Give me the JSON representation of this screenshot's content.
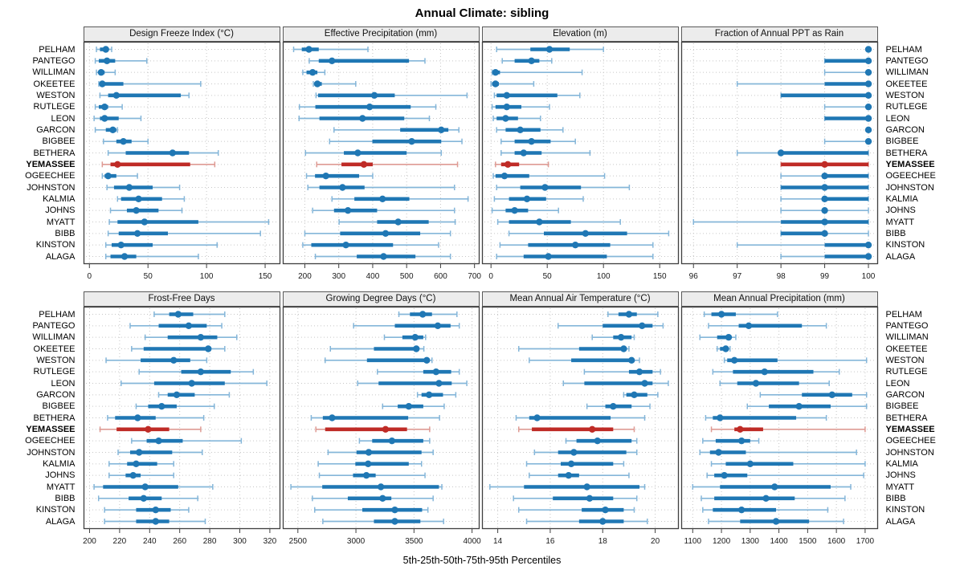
{
  "title": "Annual Climate: sibling",
  "caption": "5th-25th-50th-75th-95th Percentiles",
  "percentile_labels": [
    "5th",
    "25th",
    "50th",
    "75th",
    "95th"
  ],
  "highlight_station": "YEMASSEE",
  "stations": [
    "PELHAM",
    "PANTEGO",
    "WILLIMAN",
    "OKEETEE",
    "WESTON",
    "RUTLEGE",
    "LEON",
    "GARCON",
    "BIGBEE",
    "BETHERA",
    "YEMASSEE",
    "OGEECHEE",
    "JOHNSTON",
    "KALMIA",
    "JOHNS",
    "MYATT",
    "BIBB",
    "KINSTON",
    "ALAGA"
  ],
  "colors": {
    "series": "#1f77b4",
    "series_light": "#85b6d9",
    "highlight": "#bf2b26",
    "highlight_light": "#de9a93",
    "grid": "#c6c6c6",
    "strip_bg": "#ececec",
    "border": "#3f3f3f"
  },
  "chart_data": [
    {
      "type": "percentile-range",
      "row": 0,
      "col": 0,
      "title": "Design Freeze Index (°C)",
      "xlim": [
        -5,
        163
      ],
      "xticks": [
        0,
        50,
        100,
        150
      ],
      "values": [
        [
          6,
          9,
          14,
          16,
          19
        ],
        [
          5,
          8,
          15,
          22,
          49
        ],
        [
          6,
          8,
          10,
          13,
          22
        ],
        [
          8,
          9,
          11,
          29,
          95
        ],
        [
          9,
          16,
          23,
          78,
          85
        ],
        [
          5,
          8,
          13,
          16,
          28
        ],
        [
          4,
          9,
          13,
          25,
          44
        ],
        [
          5,
          14,
          20,
          23,
          24
        ],
        [
          12,
          23,
          29,
          36,
          50
        ],
        [
          16,
          31,
          71,
          85,
          110
        ],
        [
          11,
          18,
          24,
          86,
          107
        ],
        [
          11,
          13,
          16,
          23,
          41
        ],
        [
          15,
          21,
          34,
          54,
          77
        ],
        [
          24,
          27,
          42,
          62,
          81
        ],
        [
          18,
          32,
          40,
          59,
          79
        ],
        [
          17,
          24,
          47,
          93,
          153
        ],
        [
          16,
          25,
          41,
          67,
          146
        ],
        [
          14,
          19,
          27,
          54,
          109
        ],
        [
          14,
          18,
          30,
          40,
          93
        ]
      ]
    },
    {
      "type": "percentile-range",
      "row": 0,
      "col": 1,
      "title": "Effective Precipitation (mm)",
      "xlim": [
        135,
        715
      ],
      "xticks": [
        200,
        300,
        400,
        500,
        600,
        700
      ],
      "values": [
        [
          167,
          191,
          212,
          241,
          386
        ],
        [
          213,
          241,
          280,
          507,
          554
        ],
        [
          194,
          205,
          223,
          237,
          259
        ],
        [
          225,
          228,
          237,
          250,
          350
        ],
        [
          233,
          239,
          405,
          465,
          678
        ],
        [
          184,
          231,
          391,
          512,
          586
        ],
        [
          183,
          243,
          370,
          493,
          567
        ],
        [
          286,
          481,
          602,
          623,
          654
        ],
        [
          273,
          399,
          515,
          602,
          663
        ],
        [
          202,
          315,
          356,
          500,
          602
        ],
        [
          235,
          308,
          374,
          400,
          650
        ],
        [
          205,
          230,
          262,
          360,
          400
        ],
        [
          209,
          243,
          311,
          376,
          641
        ],
        [
          280,
          346,
          429,
          508,
          681
        ],
        [
          223,
          286,
          327,
          413,
          641
        ],
        [
          301,
          413,
          475,
          565,
          643
        ],
        [
          200,
          304,
          438,
          540,
          629
        ],
        [
          194,
          219,
          321,
          460,
          594
        ],
        [
          231,
          353,
          432,
          526,
          629
        ]
      ]
    },
    {
      "type": "percentile-range",
      "row": 0,
      "col": 2,
      "title": "Elevation (m)",
      "xlim": [
        -8,
        167
      ],
      "xticks": [
        0,
        50,
        100,
        150
      ],
      "values": [
        [
          5,
          35,
          52,
          70,
          100
        ],
        [
          10,
          21,
          36,
          43,
          54
        ],
        [
          1,
          2,
          4,
          8,
          81
        ],
        [
          0,
          1,
          4,
          7,
          38
        ],
        [
          3,
          5,
          14,
          59,
          79
        ],
        [
          1,
          4,
          14,
          27,
          52
        ],
        [
          2,
          5,
          13,
          24,
          44
        ],
        [
          5,
          13,
          26,
          44,
          64
        ],
        [
          9,
          21,
          36,
          53,
          75
        ],
        [
          9,
          21,
          29,
          45,
          88
        ],
        [
          4,
          9,
          15,
          25,
          51
        ],
        [
          2,
          4,
          12,
          34,
          101
        ],
        [
          5,
          26,
          48,
          80,
          123
        ],
        [
          3,
          16,
          32,
          49,
          82
        ],
        [
          1,
          13,
          21,
          33,
          60
        ],
        [
          6,
          16,
          43,
          71,
          115
        ],
        [
          16,
          47,
          84,
          121,
          158
        ],
        [
          8,
          33,
          75,
          106,
          144
        ],
        [
          5,
          29,
          51,
          103,
          144
        ]
      ]
    },
    {
      "type": "percentile-range",
      "row": 0,
      "col": 3,
      "title": "Fraction of Annual PPT as Rain",
      "xlim": [
        95.72,
        100.22
      ],
      "xticks": [
        96,
        97,
        98,
        99,
        100
      ],
      "values": [
        [
          100,
          100,
          100,
          100,
          100
        ],
        [
          99,
          99,
          100,
          100,
          100
        ],
        [
          99,
          100,
          100,
          100,
          100
        ],
        [
          97,
          99,
          100,
          100,
          100
        ],
        [
          98,
          98,
          100,
          100,
          100
        ],
        [
          99,
          100,
          100,
          100,
          100
        ],
        [
          99,
          99,
          100,
          100,
          100
        ],
        [
          100,
          100,
          100,
          100,
          100
        ],
        [
          99,
          100,
          100,
          100,
          100
        ],
        [
          97,
          98,
          98,
          100,
          100
        ],
        [
          98,
          98,
          99,
          100,
          100
        ],
        [
          98,
          99,
          99,
          100,
          100
        ],
        [
          98,
          98,
          99,
          100,
          100
        ],
        [
          98,
          99,
          99,
          100,
          100
        ],
        [
          98,
          99,
          99,
          99,
          100
        ],
        [
          96,
          98,
          99,
          100,
          100
        ],
        [
          98,
          98,
          99,
          99,
          100
        ],
        [
          97,
          99,
          100,
          100,
          100
        ],
        [
          98,
          99,
          100,
          100,
          100
        ]
      ]
    },
    {
      "type": "percentile-range",
      "row": 1,
      "col": 0,
      "title": "Frost-Free Days",
      "xlim": [
        196,
        327
      ],
      "xticks": [
        200,
        220,
        240,
        260,
        280,
        300,
        320
      ],
      "values": [
        [
          243,
          253,
          259,
          269,
          290
        ],
        [
          227,
          246,
          266,
          278,
          288
        ],
        [
          237,
          252,
          274,
          285,
          298
        ],
        [
          228,
          236,
          279,
          281,
          290
        ],
        [
          211,
          234,
          256,
          267,
          278
        ],
        [
          233,
          261,
          274,
          294,
          309
        ],
        [
          221,
          243,
          268,
          290,
          318
        ],
        [
          246,
          252,
          258,
          270,
          293
        ],
        [
          231,
          239,
          248,
          258,
          283
        ],
        [
          212,
          217,
          232,
          244,
          276
        ],
        [
          207,
          218,
          239,
          253,
          274
        ],
        [
          228,
          238,
          246,
          262,
          301
        ],
        [
          219,
          227,
          233,
          255,
          275
        ],
        [
          213,
          225,
          231,
          245,
          256
        ],
        [
          213,
          224,
          229,
          234,
          256
        ],
        [
          203,
          209,
          237,
          259,
          282
        ],
        [
          206,
          226,
          236,
          248,
          272
        ],
        [
          210,
          231,
          244,
          254,
          266
        ],
        [
          210,
          231,
          244,
          253,
          277
        ]
      ]
    },
    {
      "type": "percentile-range",
      "row": 1,
      "col": 1,
      "title": "Growing Degree Days (°C)",
      "xlim": [
        2370,
        4065
      ],
      "xticks": [
        2500,
        3000,
        3500,
        4000
      ],
      "values": [
        [
          3370,
          3465,
          3575,
          3655,
          3870
        ],
        [
          2980,
          3335,
          3705,
          3815,
          3890
        ],
        [
          3245,
          3400,
          3510,
          3580,
          3600
        ],
        [
          2780,
          3155,
          3520,
          3545,
          3585
        ],
        [
          2735,
          3095,
          3610,
          3635,
          3655
        ],
        [
          3185,
          3580,
          3690,
          3820,
          3890
        ],
        [
          3015,
          3195,
          3715,
          3825,
          3955
        ],
        [
          3530,
          3565,
          3630,
          3750,
          3860
        ],
        [
          3230,
          3360,
          3455,
          3580,
          3760
        ],
        [
          2615,
          2715,
          2795,
          3450,
          3720
        ],
        [
          2655,
          2735,
          3255,
          3440,
          3635
        ],
        [
          3030,
          3140,
          3310,
          3580,
          3635
        ],
        [
          2760,
          3005,
          3110,
          3565,
          3665
        ],
        [
          2675,
          2995,
          3105,
          3455,
          3565
        ],
        [
          2685,
          2975,
          3090,
          3170,
          3595
        ],
        [
          2440,
          2710,
          3215,
          3715,
          3740
        ],
        [
          2625,
          2930,
          3230,
          3305,
          3665
        ],
        [
          2645,
          3055,
          3335,
          3570,
          3620
        ],
        [
          2715,
          3155,
          3335,
          3555,
          3755
        ]
      ]
    },
    {
      "type": "percentile-range",
      "row": 1,
      "col": 2,
      "title": "Mean Annual Air Temperature (°C)",
      "xlim": [
        13.4,
        20.9
      ],
      "xticks": [
        14,
        16,
        18,
        20
      ],
      "values": [
        [
          18.2,
          18.6,
          19.0,
          19.3,
          20.1
        ],
        [
          16.3,
          18.0,
          19.5,
          19.9,
          20.3
        ],
        [
          17.6,
          18.4,
          18.7,
          19.1,
          19.2
        ],
        [
          14.8,
          17.1,
          18.8,
          18.9,
          19.0
        ],
        [
          15.2,
          16.8,
          19.1,
          19.2,
          19.4
        ],
        [
          17.3,
          19.0,
          19.4,
          19.9,
          20.2
        ],
        [
          16.5,
          17.3,
          19.6,
          19.9,
          20.5
        ],
        [
          18.8,
          18.9,
          19.2,
          19.7,
          20.1
        ],
        [
          17.4,
          18.1,
          18.4,
          19.1,
          19.8
        ],
        [
          14.7,
          15.2,
          15.5,
          18.3,
          19.6
        ],
        [
          14.8,
          15.3,
          17.6,
          18.4,
          19.2
        ],
        [
          16.6,
          17.0,
          17.8,
          19.1,
          19.3
        ],
        [
          15.4,
          16.3,
          16.9,
          18.9,
          19.3
        ],
        [
          15.1,
          16.4,
          16.8,
          18.4,
          18.8
        ],
        [
          15.2,
          16.3,
          16.7,
          17.1,
          19.0
        ],
        [
          13.7,
          15.0,
          17.4,
          19.4,
          19.6
        ],
        [
          14.6,
          16.1,
          17.5,
          18.4,
          19.3
        ],
        [
          14.8,
          17.2,
          18.1,
          18.8,
          19.2
        ],
        [
          15.1,
          17.1,
          18.0,
          18.8,
          19.7
        ]
      ]
    },
    {
      "type": "percentile-range",
      "row": 1,
      "col": 3,
      "title": "Mean Annual Precipitation (mm)",
      "xlim": [
        1060,
        1745
      ],
      "xticks": [
        1100,
        1200,
        1300,
        1400,
        1500,
        1600,
        1700
      ],
      "values": [
        [
          1140,
          1165,
          1200,
          1250,
          1395
        ],
        [
          1155,
          1260,
          1295,
          1480,
          1565
        ],
        [
          1125,
          1185,
          1225,
          1235,
          1250
        ],
        [
          1185,
          1195,
          1215,
          1225,
          1230
        ],
        [
          1210,
          1220,
          1245,
          1395,
          1705
        ],
        [
          1170,
          1240,
          1350,
          1520,
          1610
        ],
        [
          1195,
          1255,
          1320,
          1470,
          1575
        ],
        [
          1335,
          1480,
          1585,
          1655,
          1705
        ],
        [
          1290,
          1365,
          1470,
          1580,
          1705
        ],
        [
          1145,
          1170,
          1195,
          1460,
          1565
        ],
        [
          1165,
          1245,
          1265,
          1345,
          1700
        ],
        [
          1135,
          1180,
          1270,
          1300,
          1330
        ],
        [
          1125,
          1160,
          1190,
          1285,
          1670
        ],
        [
          1165,
          1215,
          1300,
          1450,
          1700
        ],
        [
          1150,
          1175,
          1210,
          1290,
          1695
        ],
        [
          1100,
          1195,
          1385,
          1580,
          1650
        ],
        [
          1130,
          1175,
          1355,
          1455,
          1630
        ],
        [
          1135,
          1170,
          1270,
          1390,
          1570
        ],
        [
          1155,
          1265,
          1390,
          1505,
          1625
        ]
      ]
    }
  ]
}
